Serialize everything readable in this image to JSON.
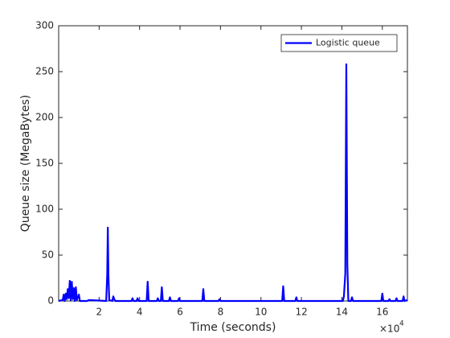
{
  "chart_data": {
    "type": "line",
    "x_label": "Time (seconds)",
    "y_label": "Queue size (MegaBytes)",
    "x_multiplier": {
      "base": "×10",
      "exponent": "4"
    },
    "xlim": [
      0,
      172400
    ],
    "ylim": [
      0,
      300
    ],
    "xticks": [
      {
        "value": 20000,
        "label": "2"
      },
      {
        "value": 40000,
        "label": "4"
      },
      {
        "value": 60000,
        "label": "6"
      },
      {
        "value": 80000,
        "label": "8"
      },
      {
        "value": 100000,
        "label": "10"
      },
      {
        "value": 120000,
        "label": "12"
      },
      {
        "value": 140000,
        "label": "14"
      },
      {
        "value": 160000,
        "label": "16"
      }
    ],
    "yticks": [
      0,
      50,
      100,
      150,
      200,
      250,
      300
    ],
    "grid": false,
    "legend_position": "northeast",
    "series": [
      {
        "name": "Logistic queue",
        "color": "#0000ff",
        "x": [
          0,
          2000,
          2500,
          3000,
          3500,
          4000,
          4500,
          5000,
          5500,
          6000,
          6500,
          7000,
          7500,
          8000,
          8500,
          9000,
          10000,
          10500,
          14000,
          15000,
          23500,
          24000,
          24300,
          24600,
          25000,
          26500,
          27000,
          27500,
          28000,
          36000,
          36500,
          37000,
          38500,
          39000,
          39500,
          43500,
          44000,
          44500,
          48500,
          49000,
          49500,
          50500,
          51000,
          51500,
          54500,
          55000,
          55500,
          59000,
          59500,
          60000,
          71000,
          71500,
          72000,
          79000,
          79500,
          80000,
          110500,
          111000,
          111500,
          117000,
          117500,
          118000,
          140500,
          141000,
          141700,
          142200,
          142700,
          143200,
          144500,
          145000,
          145500,
          159500,
          160000,
          160500,
          163000,
          163500,
          164000,
          166500,
          167000,
          167500,
          170000,
          170500,
          171000,
          172400
        ],
        "values": [
          0,
          1,
          7,
          0,
          8,
          2,
          13,
          3,
          22,
          1,
          21,
          2,
          14,
          0,
          15,
          1,
          7,
          0,
          0,
          1,
          0,
          28,
          80,
          28,
          1,
          0,
          5,
          2,
          0,
          0,
          3,
          0,
          0,
          3,
          0,
          0,
          21,
          0,
          0,
          3,
          0,
          0,
          15,
          0,
          0,
          4,
          0,
          0,
          3,
          0,
          0,
          13,
          0,
          0,
          2,
          0,
          0,
          16,
          0,
          0,
          4,
          0,
          0,
          5,
          30,
          258,
          40,
          0,
          0,
          4,
          0,
          0,
          8,
          0,
          0,
          2,
          0,
          0,
          3,
          0,
          0,
          5,
          0,
          1
        ]
      }
    ]
  }
}
